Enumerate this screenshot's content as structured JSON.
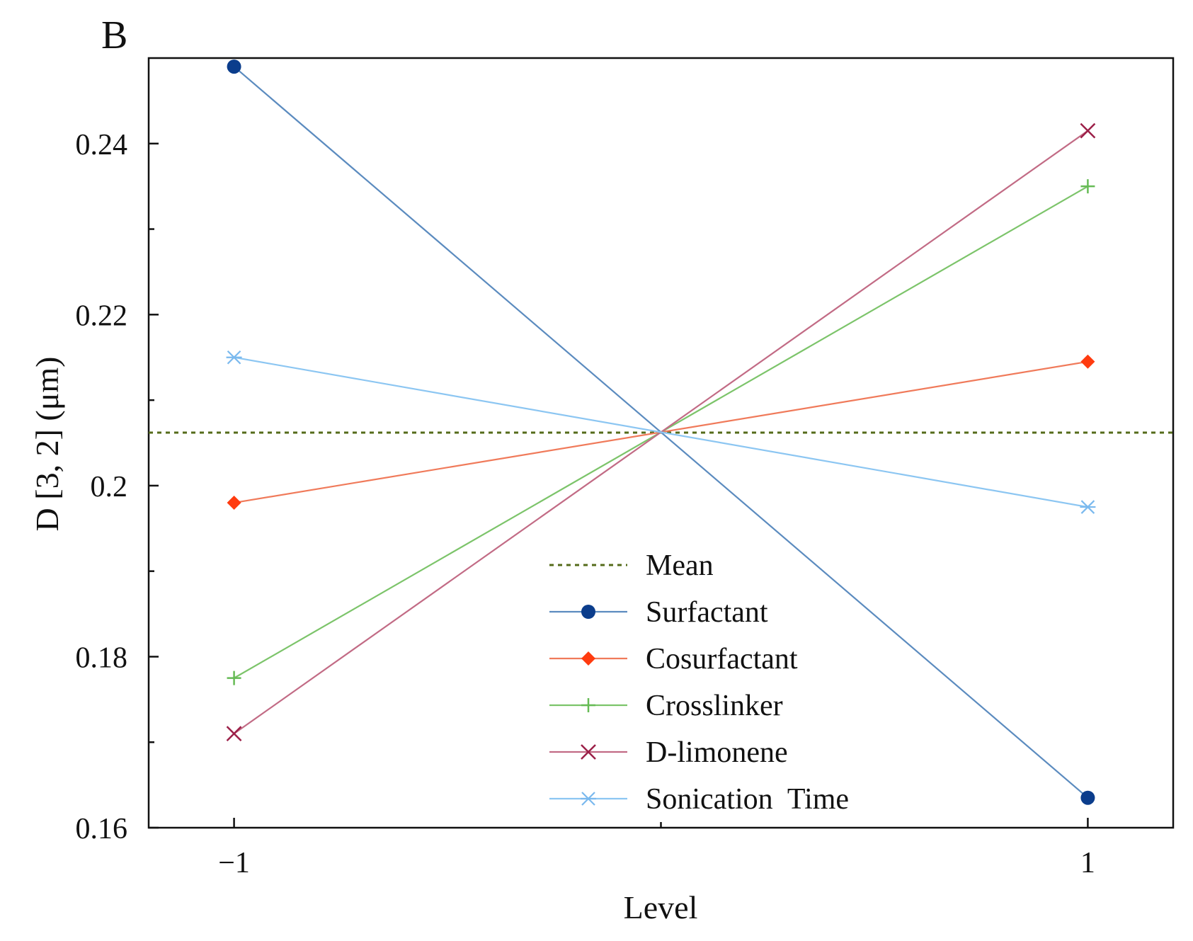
{
  "panel_label": "B",
  "chart_data": {
    "type": "line",
    "title": "",
    "xlabel": "Level",
    "ylabel": "D [3, 2] (μm)",
    "x": [
      -1,
      1
    ],
    "xlim": [
      -1.2,
      1.2
    ],
    "ylim": [
      0.16,
      0.25
    ],
    "xticks": [
      -1,
      1
    ],
    "xtick_labels": [
      "−1",
      "1"
    ],
    "yticks": [
      0.16,
      0.18,
      0.2,
      0.22,
      0.24
    ],
    "ytick_labels": [
      "0.16",
      "0.18",
      "0.2",
      "0.22",
      "0.24"
    ],
    "yminor_ticks": [
      0.17,
      0.19,
      0.21,
      0.23
    ],
    "mean": {
      "name": "Mean",
      "value": 0.2062,
      "color": "#556b1a"
    },
    "series": [
      {
        "name": "Surfactant",
        "values": [
          0.249,
          0.1635
        ],
        "color": "#5b8bbf",
        "marker_color": "#0b3d8c",
        "marker": "circle"
      },
      {
        "name": "Cosurfactant",
        "values": [
          0.198,
          0.2145
        ],
        "color": "#f07a5a",
        "marker_color": "#ff3b0f",
        "marker": "diamond"
      },
      {
        "name": "Crosslinker",
        "values": [
          0.1775,
          0.235
        ],
        "color": "#7cc46a",
        "marker_color": "#66bb55",
        "marker": "plus"
      },
      {
        "name": "D-limonene",
        "values": [
          0.171,
          0.2415
        ],
        "color": "#c26b85",
        "marker_color": "#9c2048",
        "marker": "x"
      },
      {
        "name": "Sonication  Time",
        "values": [
          0.215,
          0.1975
        ],
        "color": "#8cc6f2",
        "marker_color": "#7ab9ee",
        "marker": "asterisk"
      }
    ],
    "legend_position": "bottom-center"
  }
}
